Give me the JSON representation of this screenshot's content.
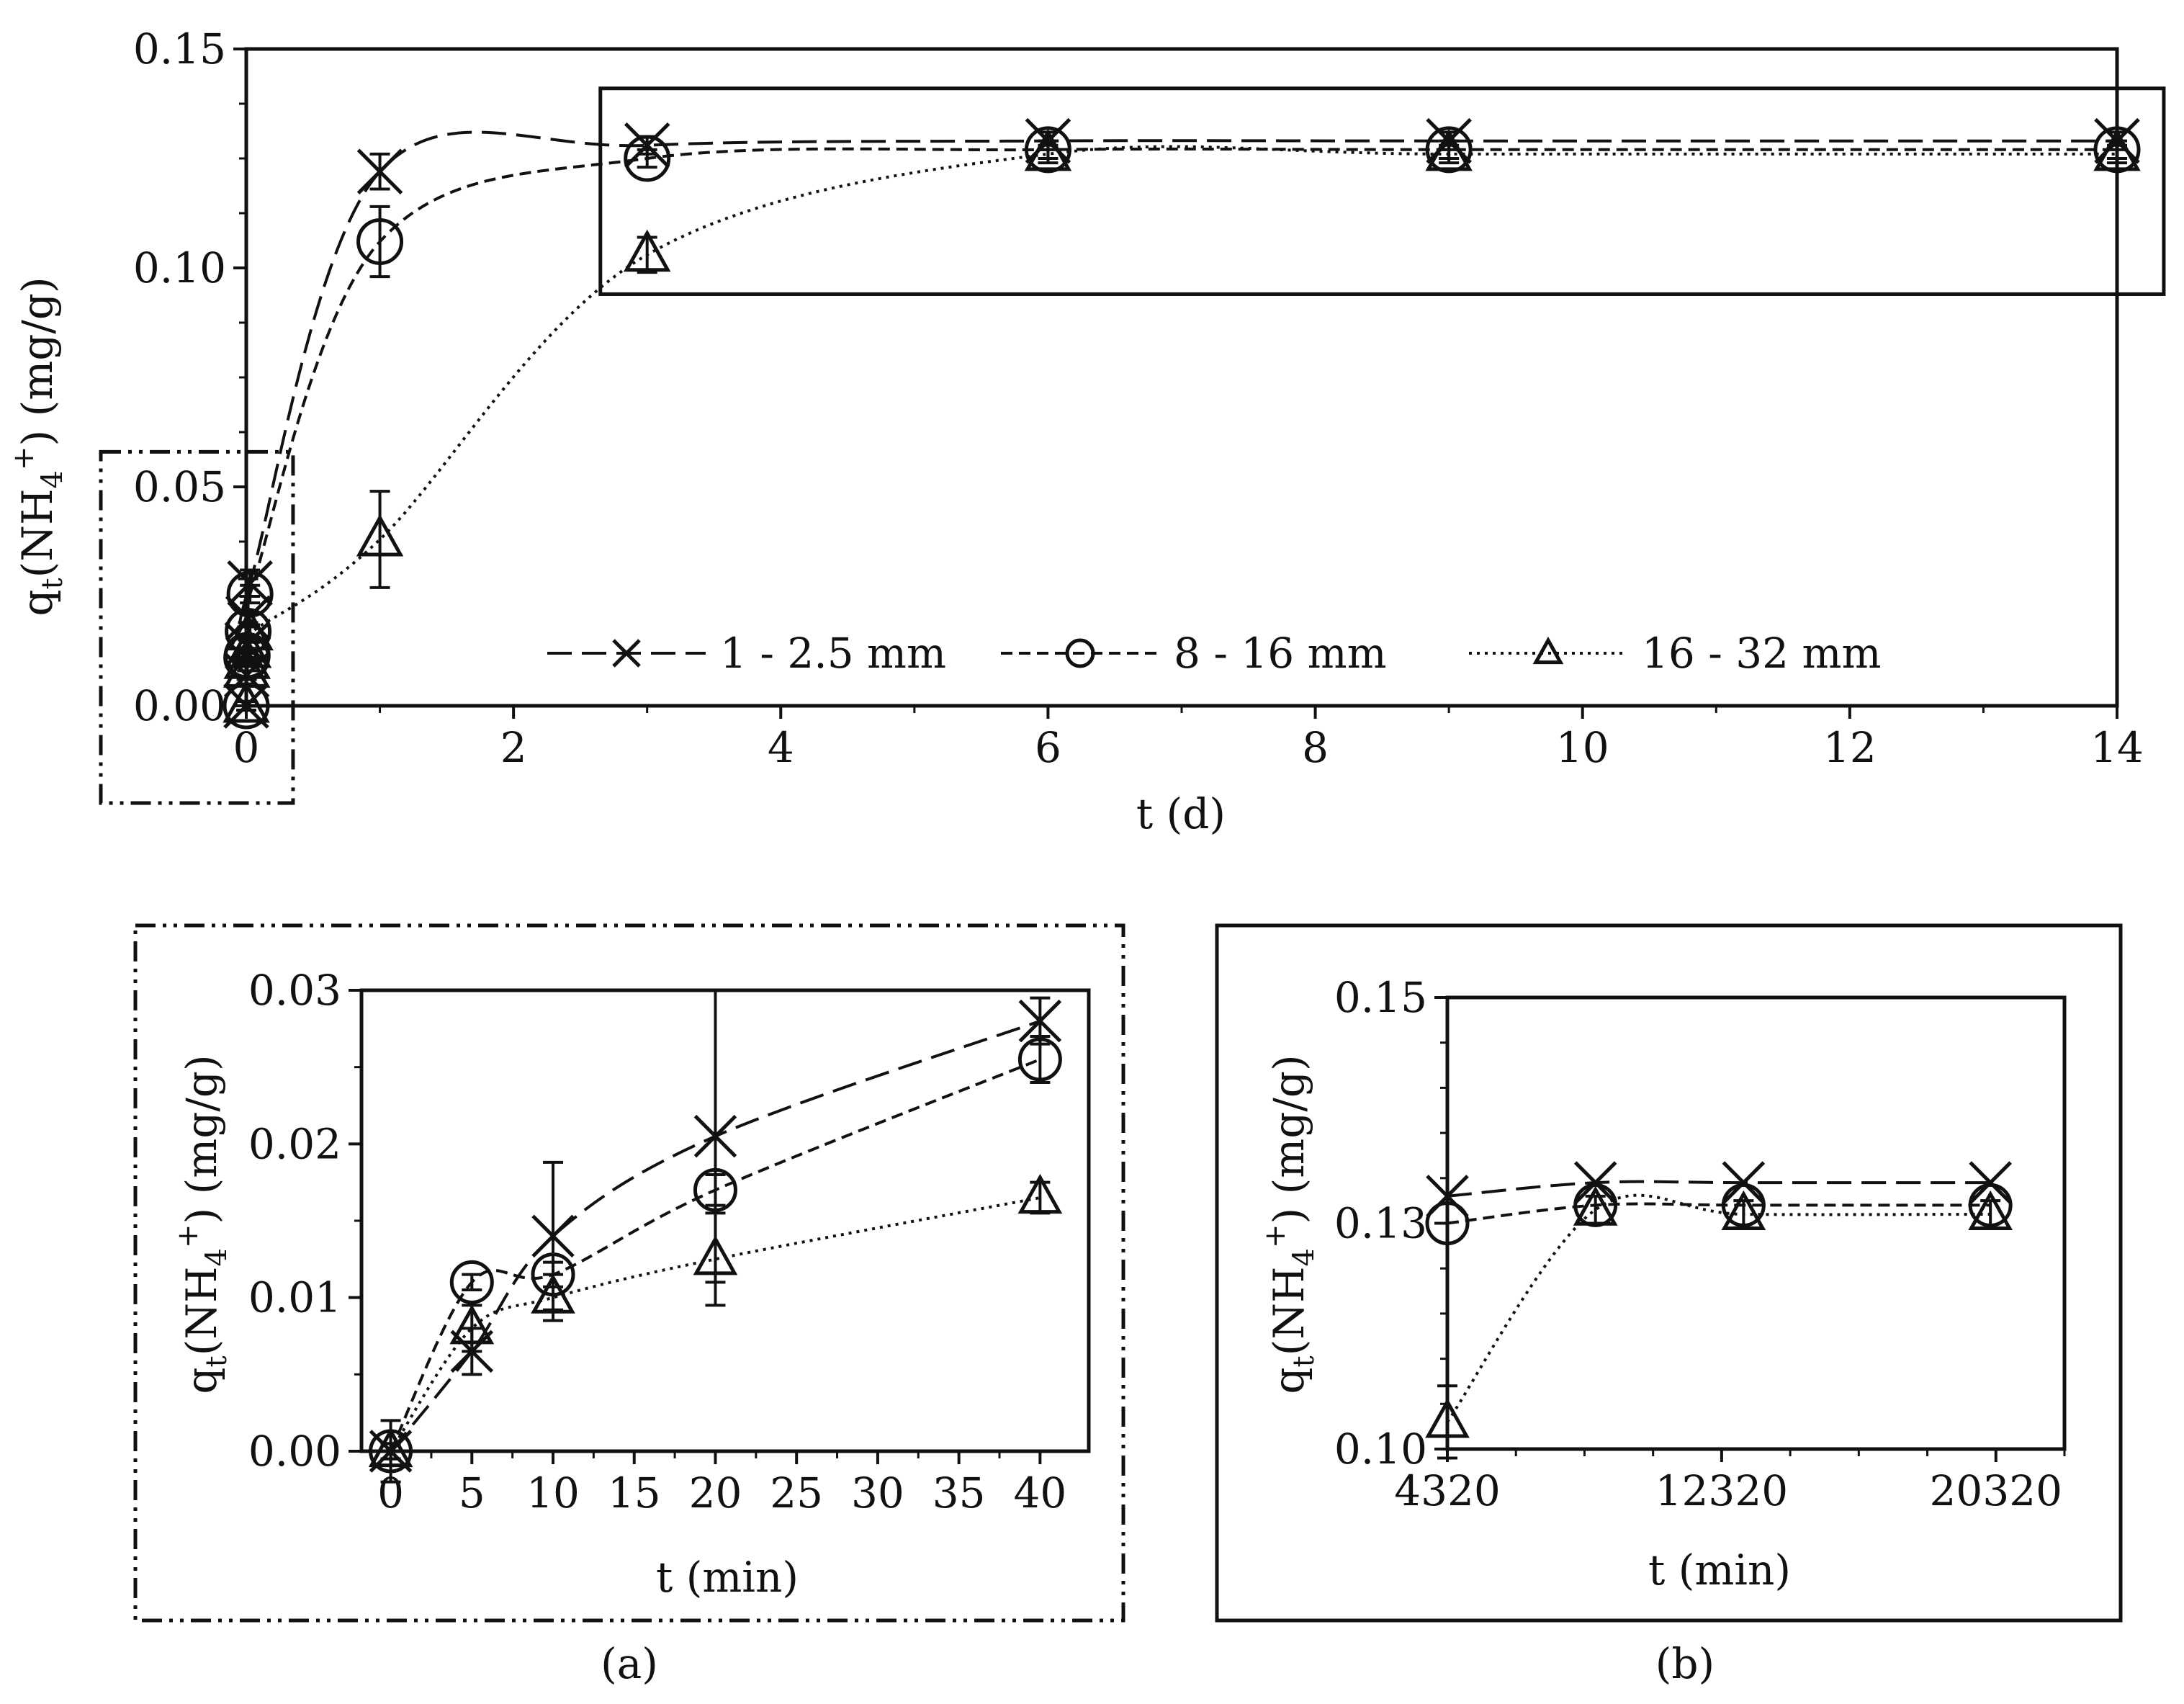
{
  "figure": {
    "panel_a_label": "(a)",
    "panel_b_label": "(b)"
  },
  "chart_data": [
    {
      "type": "line",
      "name": "main",
      "xlabel": "t (d)",
      "ylabel": "q_t(NH4+) (mg/g)",
      "xlim": [
        0,
        14
      ],
      "ylim": [
        0,
        0.15
      ],
      "xticks": [
        "0",
        "2",
        "4",
        "6",
        "8",
        "10",
        "12",
        "14"
      ],
      "yticks": [
        "0.00",
        "0.05",
        "0.10",
        "0.15"
      ],
      "legend_position": "bottom",
      "series": [
        {
          "name": "1 - 2.5 mm",
          "marker": "cross",
          "dash": "dashed",
          "x": [
            0,
            0.0035,
            0.0069,
            0.0139,
            0.0278,
            1,
            3,
            6,
            9,
            14
          ],
          "y": [
            0,
            0.007,
            0.014,
            0.02,
            0.028,
            0.122,
            0.128,
            0.129,
            0.129,
            0.129
          ],
          "err": [
            0.001,
            0.002,
            0.004,
            0.009,
            0.003,
            0.004,
            0.002,
            0.002,
            0.002,
            0.002
          ]
        },
        {
          "name": "8 - 16 mm",
          "marker": "circle",
          "dash": "short-dashed",
          "x": [
            0,
            0.0035,
            0.0069,
            0.0139,
            0.0278,
            1,
            3,
            6,
            9,
            14
          ],
          "y": [
            0,
            0.011,
            0.0115,
            0.017,
            0.0255,
            0.106,
            0.125,
            0.127,
            0.127,
            0.127
          ],
          "err": [
            0.001,
            0.001,
            0.001,
            0.002,
            0.002,
            0.008,
            0.002,
            0.002,
            0.002,
            0.002
          ]
        },
        {
          "name": "16 - 32 mm",
          "marker": "triangle",
          "dash": "dotted",
          "x": [
            0,
            0.0035,
            0.0069,
            0.0139,
            0.0278,
            1,
            3,
            6,
            9,
            14
          ],
          "y": [
            0,
            0.008,
            0.01,
            0.0125,
            0.0165,
            0.038,
            0.103,
            0.126,
            0.126,
            0.126
          ],
          "err": [
            0.001,
            0.002,
            0.002,
            0.003,
            0.002,
            0.011,
            0.004,
            0.002,
            0.002,
            0.002
          ]
        }
      ]
    },
    {
      "type": "line",
      "name": "a",
      "xlabel": "t (min)",
      "ylabel": "q_t(NH4+) (mg/g)",
      "xlim": [
        0,
        40
      ],
      "ylim": [
        0,
        0.03
      ],
      "xticks": [
        "0",
        "5",
        "10",
        "15",
        "20",
        "25",
        "30",
        "35",
        "40"
      ],
      "yticks": [
        "0.00",
        "0.01",
        "0.02",
        "0.03"
      ],
      "series": [
        {
          "name": "1 - 2.5 mm",
          "marker": "cross",
          "dash": "dashed",
          "x": [
            0,
            5,
            10,
            20,
            40
          ],
          "y": [
            0,
            0.0065,
            0.014,
            0.0205,
            0.028
          ],
          "err": [
            0.002,
            0.0015,
            0.0048,
            0.0095,
            0.0015
          ]
        },
        {
          "name": "8 - 16 mm",
          "marker": "circle",
          "dash": "short-dashed",
          "x": [
            0,
            5,
            10,
            20,
            40
          ],
          "y": [
            0,
            0.011,
            0.0115,
            0.017,
            0.0255
          ],
          "err": [
            0.0005,
            0.0005,
            0.0008,
            0.001,
            0.0015
          ]
        },
        {
          "name": "16 - 32 mm",
          "marker": "triangle",
          "dash": "dotted",
          "x": [
            0,
            5,
            10,
            20,
            40
          ],
          "y": [
            0,
            0.008,
            0.01,
            0.0125,
            0.0165
          ],
          "err": [
            0.0005,
            0.0015,
            0.0015,
            0.003,
            0.001
          ]
        }
      ]
    },
    {
      "type": "line",
      "name": "b",
      "xlabel": "t (min)",
      "ylabel": "q_t(NH4+) (mg/g)",
      "xlim": [
        4320,
        22320
      ],
      "ylim": [
        0.1,
        0.15
      ],
      "xticks": [
        "4320",
        "12320",
        "20320"
      ],
      "yticks": [
        "0.10",
        "0.13",
        "0.15"
      ],
      "ytick_values": [
        0.1,
        0.125,
        0.15
      ],
      "series": [
        {
          "name": "1 - 2.5 mm",
          "marker": "cross",
          "dash": "dashed",
          "x": [
            4320,
            8640,
            12960,
            20160
          ],
          "y": [
            0.128,
            0.1295,
            0.1295,
            0.1295
          ]
        },
        {
          "name": "8 - 16 mm",
          "marker": "circle",
          "dash": "short-dashed",
          "x": [
            4320,
            8640,
            12960,
            20160
          ],
          "y": [
            0.125,
            0.127,
            0.127,
            0.127
          ]
        },
        {
          "name": "16 - 32 mm",
          "marker": "triangle",
          "dash": "dotted",
          "x": [
            4320,
            8640,
            12960,
            20160
          ],
          "y": [
            0.103,
            0.1265,
            0.126,
            0.126
          ],
          "err": [
            0.004,
            0.0015,
            0.0015,
            0.0015
          ]
        }
      ]
    }
  ]
}
